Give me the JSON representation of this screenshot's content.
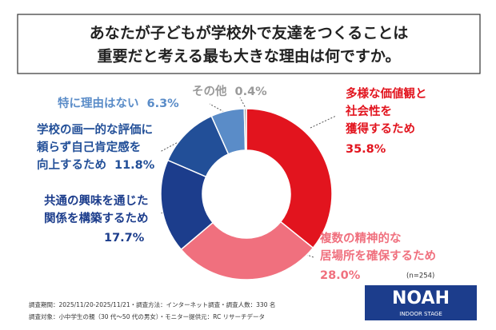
{
  "chart_data": {
    "type": "donut",
    "title": [
      "あなたが子どもが学校外で友達をつくることは",
      "重要だと考える最も大きな理由は何ですか。"
    ],
    "categories": [
      [
        "多様な価値観と",
        "社会性を",
        "獲得するため"
      ],
      [
        "複数の精神的な",
        "居場所を確保するため"
      ],
      [
        "共通の興味を通じた",
        "関係を構築するため"
      ],
      [
        "学校の画一的な評価に",
        "頼らず自己肯定感を",
        "向上するため"
      ],
      [
        "特に理由はない"
      ],
      [
        "その他"
      ]
    ],
    "values": [
      35.8,
      28.0,
      17.7,
      11.8,
      6.3,
      0.4
    ],
    "value_labels": [
      "35.8%",
      "28.0%",
      "17.7%",
      "11.8%",
      "6.3%",
      "0.4%"
    ],
    "colors": [
      "#e2141e",
      "#f0707e",
      "#1c3d8c",
      "#224f98",
      "#5a8cc8",
      "#9a9a9a"
    ],
    "note": "(n=254)",
    "footer": [
      "調査期間：2025/11/20-2025/11/21・調査方法：インターネット調査・調査人数：330 名",
      "調査対象：小中学生の親（30 代～50 代の男女）・モニター提供元：RC リサーチデータ"
    ],
    "logo": [
      "NOAH",
      "INDOOR STAGE"
    ]
  }
}
